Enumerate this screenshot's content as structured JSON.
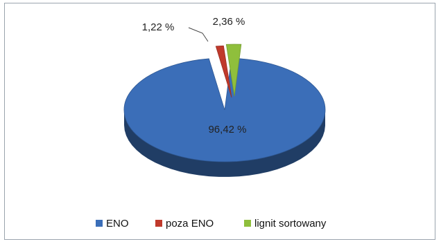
{
  "chart_data": {
    "type": "pie",
    "style": "3d-exploded",
    "legend_position": "bottom",
    "series": [
      {
        "name": "ENO",
        "value": 96.42,
        "label": "96,42 %",
        "color": "#3b6eb8"
      },
      {
        "name": "poza ENO",
        "value": 1.22,
        "label": "1,22 %",
        "color": "#c0392b"
      },
      {
        "name": "lignit sortowany",
        "value": 2.36,
        "label": "2,36 %",
        "color": "#8fbf3c"
      }
    ]
  }
}
